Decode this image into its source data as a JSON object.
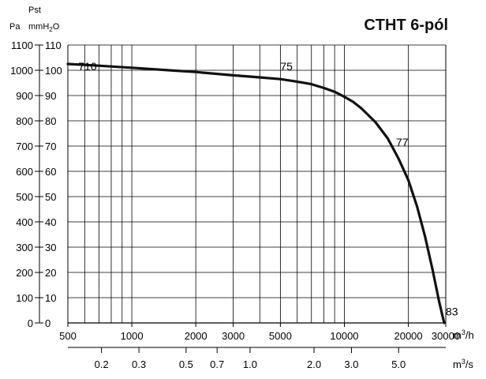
{
  "chart_data": {
    "type": "line",
    "title": "CTHT 6-pól",
    "y_axis_pa": {
      "unit": "Pa",
      "ticks": [
        0,
        100,
        200,
        300,
        400,
        500,
        600,
        700,
        800,
        900,
        1000,
        1100
      ],
      "range": [
        0,
        1100
      ]
    },
    "y_axis_mmh2o": {
      "label": "Pst",
      "unit_main": "mmH",
      "unit_sub": "2",
      "unit_end": "O",
      "ticks": [
        0,
        10,
        20,
        30,
        40,
        50,
        60,
        70,
        80,
        90,
        100,
        110
      ]
    },
    "x_axis_m3h": {
      "unit_main": "m",
      "unit_sup": "3",
      "unit_end": "/h",
      "scale": "log",
      "range": [
        500,
        30000
      ],
      "ticks": [
        500,
        1000,
        2000,
        3000,
        5000,
        10000,
        20000,
        30000
      ]
    },
    "x_axis_m3s": {
      "unit_main": "m",
      "unit_sup": "3",
      "unit_end": "/s",
      "ticks": [
        {
          "label": "0.2",
          "value": 0.2
        },
        {
          "label": "0.3",
          "value": 0.3
        },
        {
          "label": "0.5",
          "value": 0.5
        },
        {
          "label": "0.7",
          "value": 0.7
        },
        {
          "label": "1.0",
          "value": 1.0
        },
        {
          "label": "2.0",
          "value": 2.0
        },
        {
          "label": "3.0",
          "value": 3.0
        },
        {
          "label": "5.0",
          "value": 5.0
        }
      ]
    },
    "grid": true,
    "series": [
      {
        "x": [
          500,
          700,
          1000,
          1500,
          2000,
          3000,
          4000,
          5000,
          6000,
          7000,
          8000,
          9000,
          10000,
          11000,
          12000,
          14000,
          16000,
          18000,
          20000,
          22000,
          24000,
          26000,
          28000,
          29500
        ],
        "y": [
          1025,
          1018,
          1010,
          1000,
          993,
          980,
          972,
          965,
          955,
          945,
          930,
          915,
          895,
          875,
          850,
          795,
          730,
          650,
          565,
          460,
          340,
          210,
          80,
          0
        ]
      }
    ],
    "annotations": [
      {
        "text": "710",
        "x": 560,
        "y": 1000
      },
      {
        "text": "75",
        "x": 5000,
        "y": 1000
      },
      {
        "text": "77",
        "x": 17500,
        "y": 700
      },
      {
        "text": "83",
        "x": 30000,
        "y": 30
      }
    ]
  }
}
